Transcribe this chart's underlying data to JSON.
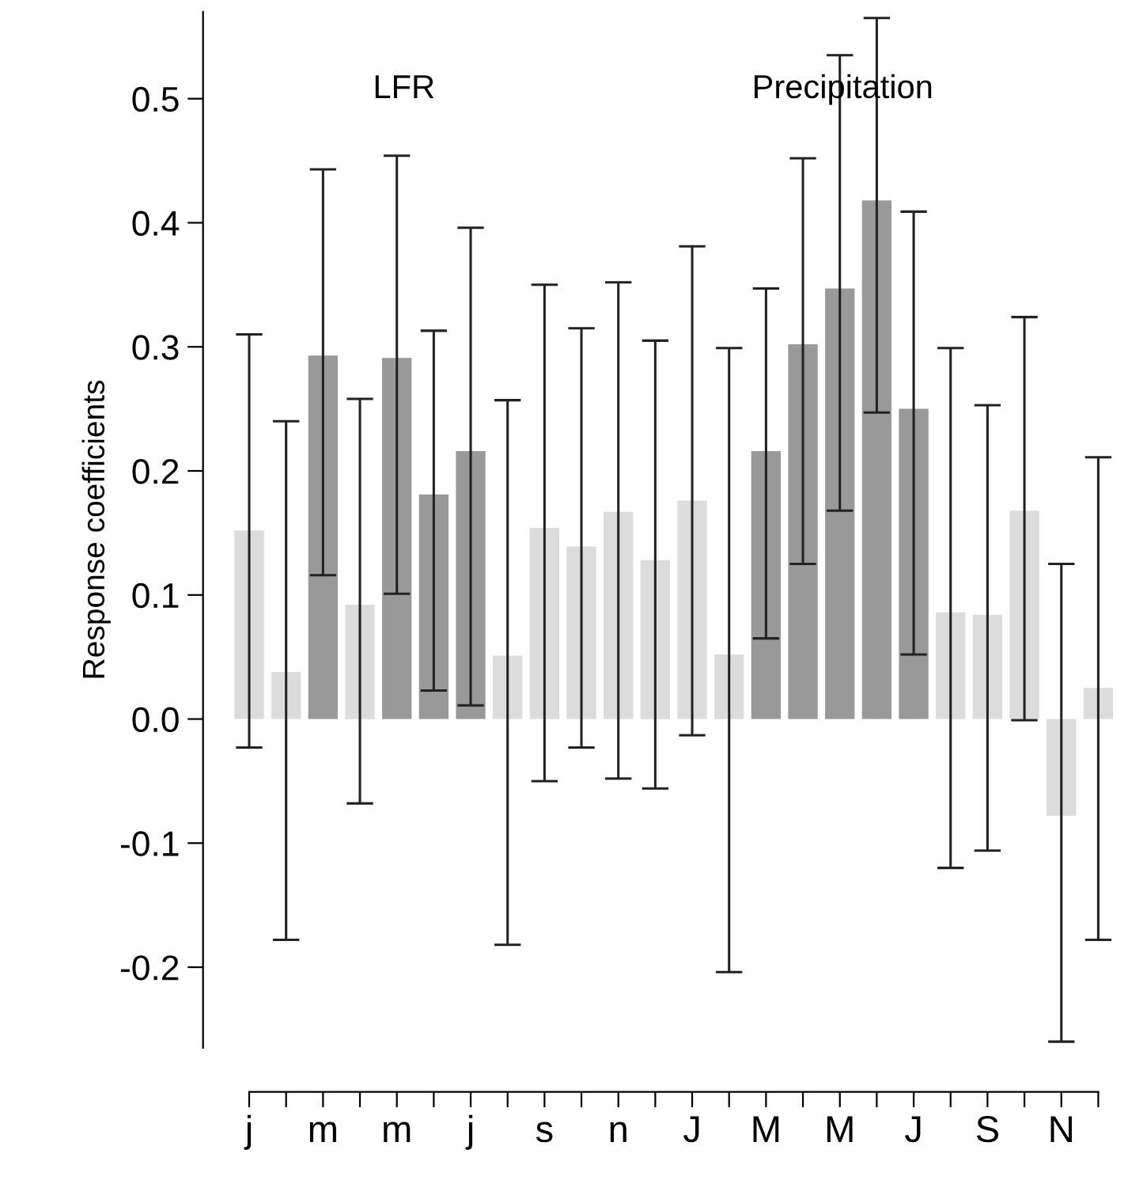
{
  "chart_data": {
    "type": "bar",
    "categories": [
      "j",
      null,
      "m",
      null,
      "m",
      null,
      "j",
      null,
      "s",
      null,
      "n",
      null,
      "J",
      null,
      "M",
      null,
      "M",
      null,
      "J",
      null,
      "S",
      null,
      "N",
      null
    ],
    "values": [
      0.152,
      0.038,
      0.293,
      0.092,
      0.291,
      0.181,
      0.216,
      0.051,
      0.154,
      0.139,
      0.167,
      0.128,
      0.176,
      0.052,
      0.216,
      0.302,
      0.347,
      0.418,
      0.25,
      0.086,
      0.084,
      0.168,
      -0.078,
      0.025
    ],
    "colors": [
      "#dcdcdc",
      "#dcdcdc",
      "#999999",
      "#dcdcdc",
      "#999999",
      "#999999",
      "#999999",
      "#dcdcdc",
      "#dcdcdc",
      "#dcdcdc",
      "#dcdcdc",
      "#dcdcdc",
      "#dcdcdc",
      "#dcdcdc",
      "#999999",
      "#999999",
      "#999999",
      "#999999",
      "#999999",
      "#dcdcdc",
      "#dcdcdc",
      "#dcdcdc",
      "#dcdcdc",
      "#dcdcdc"
    ],
    "errors": [
      [
        -0.023,
        0.31
      ],
      [
        -0.178,
        0.24
      ],
      [
        0.116,
        0.443
      ],
      [
        -0.068,
        0.258
      ],
      [
        0.101,
        0.454
      ],
      [
        0.023,
        0.313
      ],
      [
        0.011,
        0.396
      ],
      [
        -0.182,
        0.257
      ],
      [
        -0.05,
        0.35
      ],
      [
        -0.023,
        0.315
      ],
      [
        -0.048,
        0.352
      ],
      [
        -0.056,
        0.305
      ],
      [
        -0.013,
        0.381
      ],
      [
        -0.204,
        0.299
      ],
      [
        0.065,
        0.347
      ],
      [
        0.125,
        0.452
      ],
      [
        0.168,
        0.535
      ],
      [
        0.247,
        0.565
      ],
      [
        0.052,
        0.409
      ],
      [
        -0.12,
        0.299
      ],
      [
        -0.106,
        0.253
      ],
      [
        -0.001,
        0.324
      ],
      [
        -0.26,
        0.125
      ],
      [
        -0.178,
        0.211
      ]
    ],
    "ylabel": "Response coefficients",
    "annotations": [
      "LFR",
      "Precipitation"
    ],
    "ylim": [
      -0.265,
      0.57
    ],
    "yticks": [
      {
        "value": -0.2,
        "label": "-0.2"
      },
      {
        "value": -0.1,
        "label": "-0.1"
      },
      {
        "value": 0,
        "label": "0.0"
      },
      {
        "value": 0.1,
        "label": "0.1"
      },
      {
        "value": 0.2,
        "label": "0.2"
      },
      {
        "value": 0.3,
        "label": "0.3"
      },
      {
        "value": 0.4,
        "label": "0.4"
      },
      {
        "value": 0.5,
        "label": "0.5"
      }
    ],
    "grid": false,
    "legend": false
  }
}
